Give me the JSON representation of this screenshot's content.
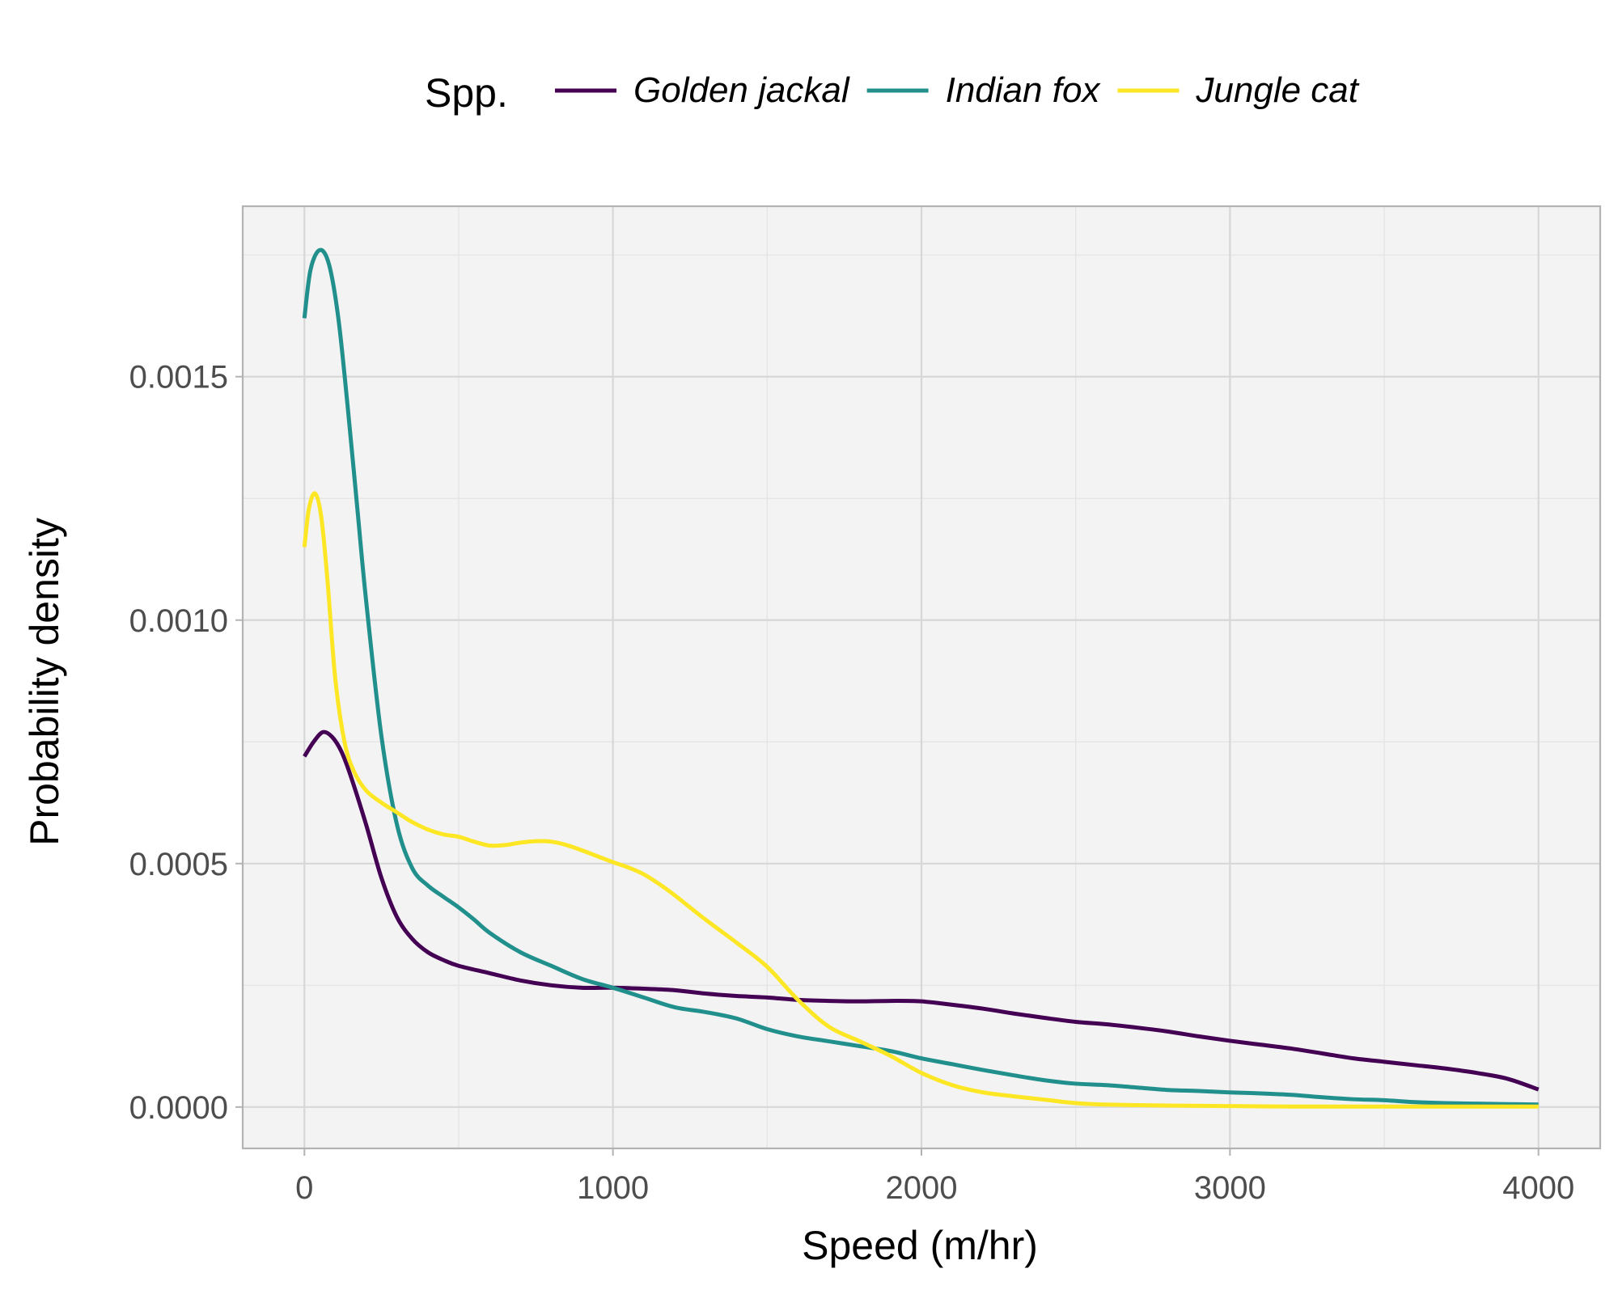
{
  "chart_data": {
    "type": "line",
    "xlabel": "Speed (m/hr)",
    "ylabel": "Probability density",
    "xlim": [
      -200,
      4200
    ],
    "ylim": [
      -8.5e-05,
      0.00185
    ],
    "x_ticks": [
      0,
      1000,
      2000,
      3000,
      4000
    ],
    "x_tick_labels": [
      "0",
      "1000",
      "2000",
      "3000",
      "4000"
    ],
    "y_ticks": [
      0,
      0.0005,
      0.001,
      0.0015
    ],
    "y_tick_labels": [
      "0.0000",
      "0.0005",
      "0.0010",
      "0.0015"
    ],
    "legend": {
      "title": "Spp.",
      "position": "top"
    },
    "grid": true,
    "panel_background": "#f3f3f3",
    "series": [
      {
        "name": "Golden jackal",
        "color": "#440154",
        "x": [
          0,
          30,
          60,
          90,
          120,
          150,
          200,
          250,
          300,
          350,
          400,
          450,
          500,
          600,
          700,
          800,
          900,
          1000,
          1100,
          1200,
          1300,
          1400,
          1500,
          1600,
          1700,
          1800,
          1900,
          2000,
          2100,
          2200,
          2300,
          2400,
          2500,
          2600,
          2700,
          2800,
          2900,
          3000,
          3100,
          3200,
          3300,
          3400,
          3500,
          3600,
          3700,
          3800,
          3900,
          4000
        ],
        "y": [
          0.00072,
          0.00075,
          0.00077,
          0.00076,
          0.00073,
          0.00068,
          0.00058,
          0.00047,
          0.00039,
          0.000345,
          0.000318,
          0.000302,
          0.00029,
          0.000275,
          0.00026,
          0.00025,
          0.000245,
          0.000245,
          0.000243,
          0.00024,
          0.000233,
          0.000228,
          0.000225,
          0.00022,
          0.000218,
          0.000217,
          0.000218,
          0.000217,
          0.00021,
          0.000202,
          0.000192,
          0.000183,
          0.000175,
          0.00017,
          0.000163,
          0.000155,
          0.000145,
          0.000136,
          0.000128,
          0.00012,
          0.00011,
          0.0001,
          9.3e-05,
          8.6e-05,
          7.9e-05,
          7e-05,
          5.8e-05,
          3.6e-05
        ]
      },
      {
        "name": "Indian fox",
        "color": "#21908C",
        "x": [
          0,
          20,
          50,
          80,
          110,
          140,
          170,
          200,
          250,
          300,
          350,
          400,
          450,
          500,
          550,
          600,
          700,
          800,
          900,
          1000,
          1100,
          1200,
          1300,
          1400,
          1500,
          1600,
          1700,
          1800,
          1900,
          2000,
          2100,
          2200,
          2300,
          2400,
          2500,
          2600,
          2700,
          2800,
          2900,
          3000,
          3100,
          3200,
          3300,
          3400,
          3500,
          3600,
          3700,
          3800,
          3900,
          4000
        ],
        "y": [
          0.00162,
          0.00172,
          0.00176,
          0.00173,
          0.00162,
          0.00144,
          0.00124,
          0.00104,
          0.00076,
          0.00058,
          0.00049,
          0.000455,
          0.000432,
          0.00041,
          0.000385,
          0.000358,
          0.000318,
          0.00029,
          0.000263,
          0.000245,
          0.000225,
          0.000205,
          0.000195,
          0.000182,
          0.00016,
          0.000145,
          0.000135,
          0.000125,
          0.000115,
          0.0001,
          8.8e-05,
          7.6e-05,
          6.5e-05,
          5.5e-05,
          4.8e-05,
          4.5e-05,
          4e-05,
          3.5e-05,
          3.3e-05,
          3e-05,
          2.8e-05,
          2.5e-05,
          2e-05,
          1.6e-05,
          1.4e-05,
          1e-05,
          8e-06,
          7e-06,
          6e-06,
          5e-06
        ]
      },
      {
        "name": "Jungle cat",
        "color": "#FDE725",
        "x": [
          0,
          15,
          35,
          55,
          75,
          100,
          130,
          160,
          200,
          250,
          300,
          350,
          400,
          450,
          500,
          550,
          600,
          650,
          700,
          750,
          800,
          850,
          900,
          950,
          1000,
          1050,
          1100,
          1150,
          1200,
          1300,
          1400,
          1500,
          1600,
          1700,
          1800,
          1900,
          2000,
          2100,
          2200,
          2300,
          2400,
          2500,
          2600,
          2800,
          3000,
          3200,
          3400,
          3600,
          3800,
          4000
        ],
        "y": [
          0.00115,
          0.00123,
          0.00126,
          0.00121,
          0.00108,
          0.00088,
          0.00075,
          0.00069,
          0.00065,
          0.000625,
          0.000605,
          0.000585,
          0.00057,
          0.00056,
          0.000555,
          0.000545,
          0.000537,
          0.000538,
          0.000543,
          0.000546,
          0.000545,
          0.000538,
          0.000527,
          0.000515,
          0.000503,
          0.000492,
          0.000478,
          0.000458,
          0.000435,
          0.000385,
          0.000338,
          0.000288,
          0.00022,
          0.000165,
          0.000135,
          0.000105,
          7e-05,
          4.5e-05,
          3e-05,
          2.2e-05,
          1.5e-05,
          8e-06,
          5e-06,
          3e-06,
          2e-06,
          1e-06,
          1e-06,
          1e-06,
          1e-06,
          1e-06
        ]
      }
    ]
  }
}
